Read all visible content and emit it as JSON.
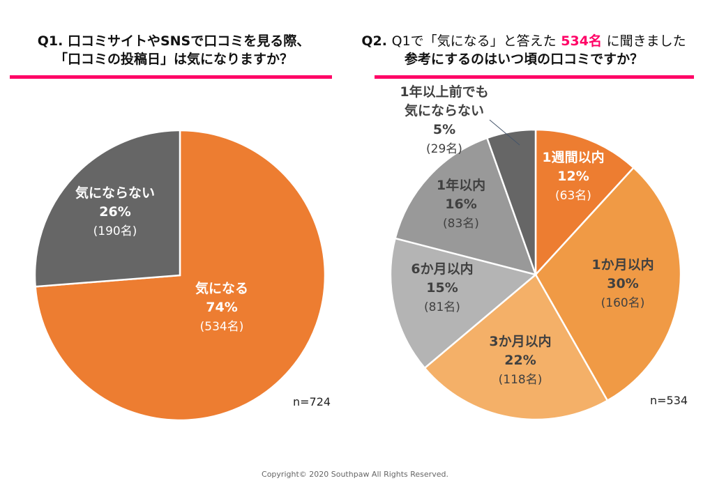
{
  "colors": {
    "accent": "#ff0066",
    "slice_orange_dark": "#ed7d31",
    "slice_orange": "#f09a45",
    "slice_orange_light": "#f4b068",
    "slice_gray_light": "#b4b4b4",
    "slice_gray": "#999999",
    "slice_gray_dark": "#666666"
  },
  "q1": {
    "title_line1": "Q1. 口コミサイトやSNSで口コミを見る際、",
    "title_line2": "「口コミの投稿日」は気になりますか？"
  },
  "q2": {
    "num": "Q2.",
    "line1_plain": "Q1で「気になる」と答えた",
    "line1_accent": "534名",
    "line1_tail": "に聞きました",
    "title_line2": "参考にするのはいつ頃の口コミですか？"
  },
  "chart_data": [
    {
      "type": "pie",
      "title": "Q1. 口コミサイトやSNSで口コミを見る際、「口コミの投稿日」は気になりますか？",
      "n_label": "n=724",
      "start": "top",
      "direction": "clockwise",
      "slices": [
        {
          "label": "気になる",
          "percent_label": "74%",
          "count_label": "(534名)",
          "value": 534,
          "color": "#ed7d31",
          "text_color": "#ffffff"
        },
        {
          "label": "気にならない",
          "percent_label": "26%",
          "count_label": "(190名)",
          "value": 190,
          "color": "#666666",
          "text_color": "#ffffff"
        }
      ]
    },
    {
      "type": "pie",
      "title": "Q2. 参考にするのはいつ頃の口コミですか？",
      "n_label": "n=534",
      "start": "top",
      "direction": "clockwise",
      "slices": [
        {
          "label": "1週間以内",
          "percent_label": "12%",
          "count_label": "(63名)",
          "value": 63,
          "color": "#ed7d31",
          "text_color": "#ffffff"
        },
        {
          "label": "1か月以内",
          "percent_label": "30%",
          "count_label": "(160名)",
          "value": 160,
          "color": "#f09a45",
          "text_color": "#404040"
        },
        {
          "label": "3か月以内",
          "percent_label": "22%",
          "count_label": "(118名)",
          "value": 118,
          "color": "#f4b068",
          "text_color": "#404040"
        },
        {
          "label": "6か月以内",
          "percent_label": "15%",
          "count_label": "(81名)",
          "value": 81,
          "color": "#b4b4b4",
          "text_color": "#404040"
        },
        {
          "label": "1年以内",
          "percent_label": "16%",
          "count_label": "(83名)",
          "value": 83,
          "color": "#999999",
          "text_color": "#404040"
        },
        {
          "label": "1年以上前でも気にならない",
          "label_lines": [
            "1年以上前でも",
            "気にならない"
          ],
          "percent_label": "5%",
          "count_label": "(29名)",
          "value": 29,
          "color": "#666666",
          "text_color": "#404040",
          "callout": true
        }
      ]
    }
  ],
  "footer": "Copyright© 2020 Southpaw All Rights Reserved."
}
